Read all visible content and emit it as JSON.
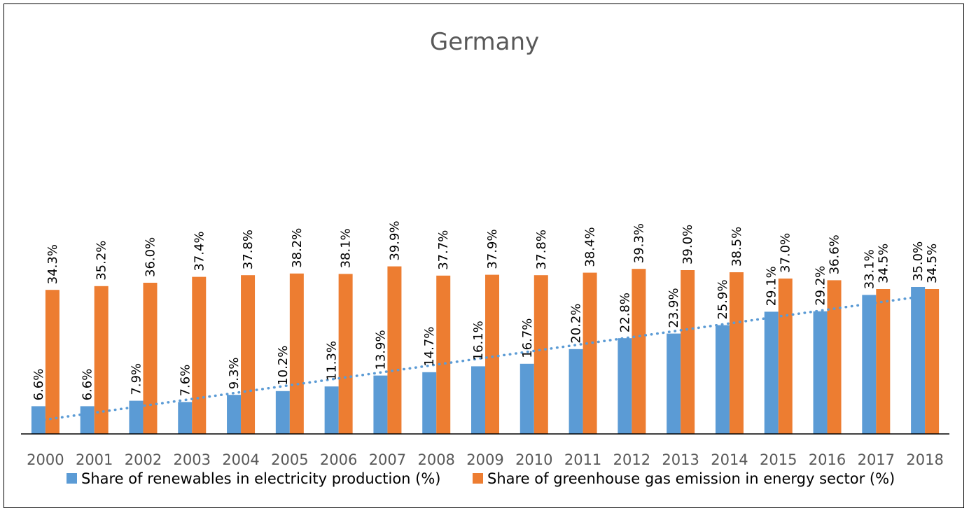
{
  "chart_data": {
    "type": "bar",
    "title": "Germany",
    "categories": [
      "2000",
      "2001",
      "2002",
      "2003",
      "2004",
      "2005",
      "2006",
      "2007",
      "2008",
      "2009",
      "2010",
      "2011",
      "2012",
      "2013",
      "2014",
      "2015",
      "2016",
      "2017",
      "2018"
    ],
    "series": [
      {
        "name": "Share of renewables in electricity production (%)",
        "color": "#5B9BD5",
        "values": [
          6.6,
          6.6,
          7.9,
          7.6,
          9.3,
          10.2,
          11.3,
          13.9,
          14.7,
          16.1,
          16.7,
          20.2,
          22.8,
          23.9,
          25.9,
          29.1,
          29.2,
          33.1,
          35.0
        ],
        "labels": [
          "6.6%",
          "6.6%",
          "7.9%",
          "7.6%",
          "9.3%",
          "10.2%",
          "11.3%",
          "13.9%",
          "14.7%",
          "16.1%",
          "16.7%",
          "20.2%",
          "22.8%",
          "23.9%",
          "25.9%",
          "29.1%",
          "29.2%",
          "33.1%",
          "35.0%"
        ]
      },
      {
        "name": "Share of greenhouse gas emission in energy sector (%)",
        "color": "#ED7D31",
        "values": [
          34.3,
          35.2,
          36.0,
          37.4,
          37.8,
          38.2,
          38.1,
          39.9,
          37.7,
          37.9,
          37.8,
          38.4,
          39.3,
          39.0,
          38.5,
          37.0,
          36.6,
          34.5,
          34.5
        ],
        "labels": [
          "34.3%",
          "35.2%",
          "36.0%",
          "37.4%",
          "37.8%",
          "38.2%",
          "38.1%",
          "39.9%",
          "37.7%",
          "37.9%",
          "37.8%",
          "38.4%",
          "39.3%",
          "39.0%",
          "38.5%",
          "37.0%",
          "36.6%",
          "34.5%",
          "34.5%"
        ]
      }
    ],
    "trendline": {
      "series": 0,
      "type": "linear",
      "style": "dotted",
      "color": "#5B9BD5"
    },
    "ylim": [
      0,
      100
    ],
    "y_axis_visible": false,
    "grid": false,
    "legend_position": "bottom"
  }
}
